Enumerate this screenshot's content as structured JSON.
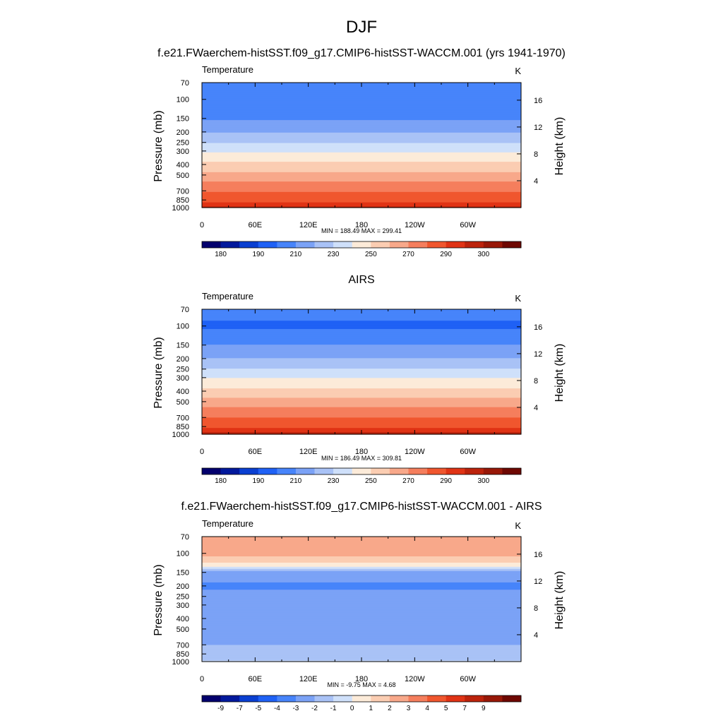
{
  "figure": {
    "title": "DJF",
    "panel_titles": [
      "f.e21.FWaerchem-histSST.f09_g17.CMIP6-histSST-WACCM.001 (yrs 1941-1970)",
      "AIRS",
      "f.e21.FWaerchem-histSST.f09_g17.CMIP6-histSST-WACCM.001 - AIRS"
    ]
  },
  "chart_data": [
    {
      "type": "heatmap",
      "variable": "Temperature",
      "units": "K",
      "xlabel": "",
      "ylabel": "Pressure (mb)",
      "ylabel_right": "Height (km)",
      "x_ticks": [
        "0",
        "60E",
        "120E",
        "180",
        "120W",
        "60W"
      ],
      "x_tick_lon": [
        0,
        60,
        120,
        180,
        240,
        300
      ],
      "xlim": [
        0,
        360
      ],
      "y_ticks": [
        "70",
        "100",
        "150",
        "200",
        "250",
        "300",
        "400",
        "500",
        "700",
        "850",
        "1000"
      ],
      "y_tick_p": [
        70,
        100,
        150,
        200,
        250,
        300,
        400,
        500,
        700,
        850,
        1000
      ],
      "ylim": [
        1000,
        70
      ],
      "y_scale": "log",
      "y2_ticks": [
        "4",
        "8",
        "12",
        "16"
      ],
      "y2_tick_km": [
        4,
        8,
        12,
        16
      ],
      "min": 188.49,
      "max": 299.41,
      "min_max_text": "MIN = 188.49  MAX = 299.41",
      "levels": [
        175,
        180,
        185,
        190,
        200,
        210,
        220,
        230,
        240,
        250,
        260,
        270,
        280,
        290,
        295,
        300,
        305
      ],
      "colorbar_labels": [
        "180",
        "190",
        "210",
        "230",
        "250",
        "270",
        "290",
        "300"
      ],
      "profile": [
        {
          "p": 70,
          "t": 208
        },
        {
          "p": 100,
          "t": 200
        },
        {
          "p": 150,
          "t": 209
        },
        {
          "p": 200,
          "t": 219
        },
        {
          "p": 250,
          "t": 229
        },
        {
          "p": 300,
          "t": 239
        },
        {
          "p": 400,
          "t": 253
        },
        {
          "p": 500,
          "t": 263
        },
        {
          "p": 700,
          "t": 279
        },
        {
          "p": 850,
          "t": 287
        },
        {
          "p": 1000,
          "t": 296
        }
      ]
    },
    {
      "type": "heatmap",
      "variable": "Temperature",
      "units": "K",
      "xlabel": "",
      "ylabel": "Pressure (mb)",
      "ylabel_right": "Height (km)",
      "x_ticks": [
        "0",
        "60E",
        "120E",
        "180",
        "120W",
        "60W"
      ],
      "x_tick_lon": [
        0,
        60,
        120,
        180,
        240,
        300
      ],
      "xlim": [
        0,
        360
      ],
      "y_ticks": [
        "70",
        "100",
        "150",
        "200",
        "250",
        "300",
        "400",
        "500",
        "700",
        "850",
        "1000"
      ],
      "y_tick_p": [
        70,
        100,
        150,
        200,
        250,
        300,
        400,
        500,
        700,
        850,
        1000
      ],
      "ylim": [
        1000,
        70
      ],
      "y_scale": "log",
      "y2_ticks": [
        "4",
        "8",
        "12",
        "16"
      ],
      "y2_tick_km": [
        4,
        8,
        12,
        16
      ],
      "min": 186.49,
      "max": 309.81,
      "min_max_text": "MIN = 186.49  MAX = 309.81",
      "levels": [
        175,
        180,
        185,
        190,
        200,
        210,
        220,
        230,
        240,
        250,
        260,
        270,
        280,
        290,
        295,
        300,
        305
      ],
      "colorbar_labels": [
        "180",
        "190",
        "210",
        "230",
        "250",
        "270",
        "290",
        "300"
      ],
      "profile": [
        {
          "p": 70,
          "t": 205
        },
        {
          "p": 100,
          "t": 198
        },
        {
          "p": 150,
          "t": 210
        },
        {
          "p": 200,
          "t": 220
        },
        {
          "p": 250,
          "t": 230
        },
        {
          "p": 300,
          "t": 240
        },
        {
          "p": 400,
          "t": 253
        },
        {
          "p": 500,
          "t": 264
        },
        {
          "p": 700,
          "t": 280
        },
        {
          "p": 850,
          "t": 288
        },
        {
          "p": 1000,
          "t": 298
        }
      ]
    },
    {
      "type": "heatmap",
      "variable": "Temperature",
      "units": "K",
      "xlabel": "",
      "ylabel": "Pressure (mb)",
      "ylabel_right": "Height (km)",
      "x_ticks": [
        "0",
        "60E",
        "120E",
        "180",
        "120W",
        "60W"
      ],
      "x_tick_lon": [
        0,
        60,
        120,
        180,
        240,
        300
      ],
      "xlim": [
        0,
        360
      ],
      "y_ticks": [
        "70",
        "100",
        "150",
        "200",
        "250",
        "300",
        "400",
        "500",
        "700",
        "850",
        "1000"
      ],
      "y_tick_p": [
        70,
        100,
        150,
        200,
        250,
        300,
        400,
        500,
        700,
        850,
        1000
      ],
      "ylim": [
        1000,
        70
      ],
      "y_scale": "log",
      "y2_ticks": [
        "4",
        "8",
        "12",
        "16"
      ],
      "y2_tick_km": [
        4,
        8,
        12,
        16
      ],
      "min": -9.75,
      "max": 4.68,
      "min_max_text": "MIN =  -9.75  MAX =   4.68",
      "levels": [
        -11,
        -9,
        -7,
        -5,
        -4,
        -3,
        -2,
        -1,
        0,
        1,
        2,
        3,
        4,
        5,
        7,
        9,
        11
      ],
      "colorbar_labels": [
        "-9",
        "-7",
        "-5",
        "-4",
        "-3",
        "-2",
        "-1",
        "0",
        "1",
        "2",
        "3",
        "4",
        "5",
        "7",
        "9"
      ],
      "profile": [
        {
          "p": 70,
          "t": 3.0
        },
        {
          "p": 100,
          "t": 2.5
        },
        {
          "p": 130,
          "t": 0.5
        },
        {
          "p": 150,
          "t": -2.5
        },
        {
          "p": 200,
          "t": -3.2
        },
        {
          "p": 250,
          "t": -2.6
        },
        {
          "p": 300,
          "t": -2.3
        },
        {
          "p": 400,
          "t": -2.2
        },
        {
          "p": 500,
          "t": -2.4
        },
        {
          "p": 700,
          "t": -2.0
        },
        {
          "p": 850,
          "t": -1.4
        },
        {
          "p": 1000,
          "t": -0.9
        }
      ]
    }
  ],
  "colorbar_colors": [
    "#03006d",
    "#02199c",
    "#0a3fd1",
    "#1f61f5",
    "#4784fa",
    "#7ba2f6",
    "#a9c2f6",
    "#cfe0fa",
    "#fcebd9",
    "#fbcdb2",
    "#f8a88a",
    "#f57e5d",
    "#f0562e",
    "#e03315",
    "#bc230c",
    "#981808",
    "#6e0802"
  ]
}
